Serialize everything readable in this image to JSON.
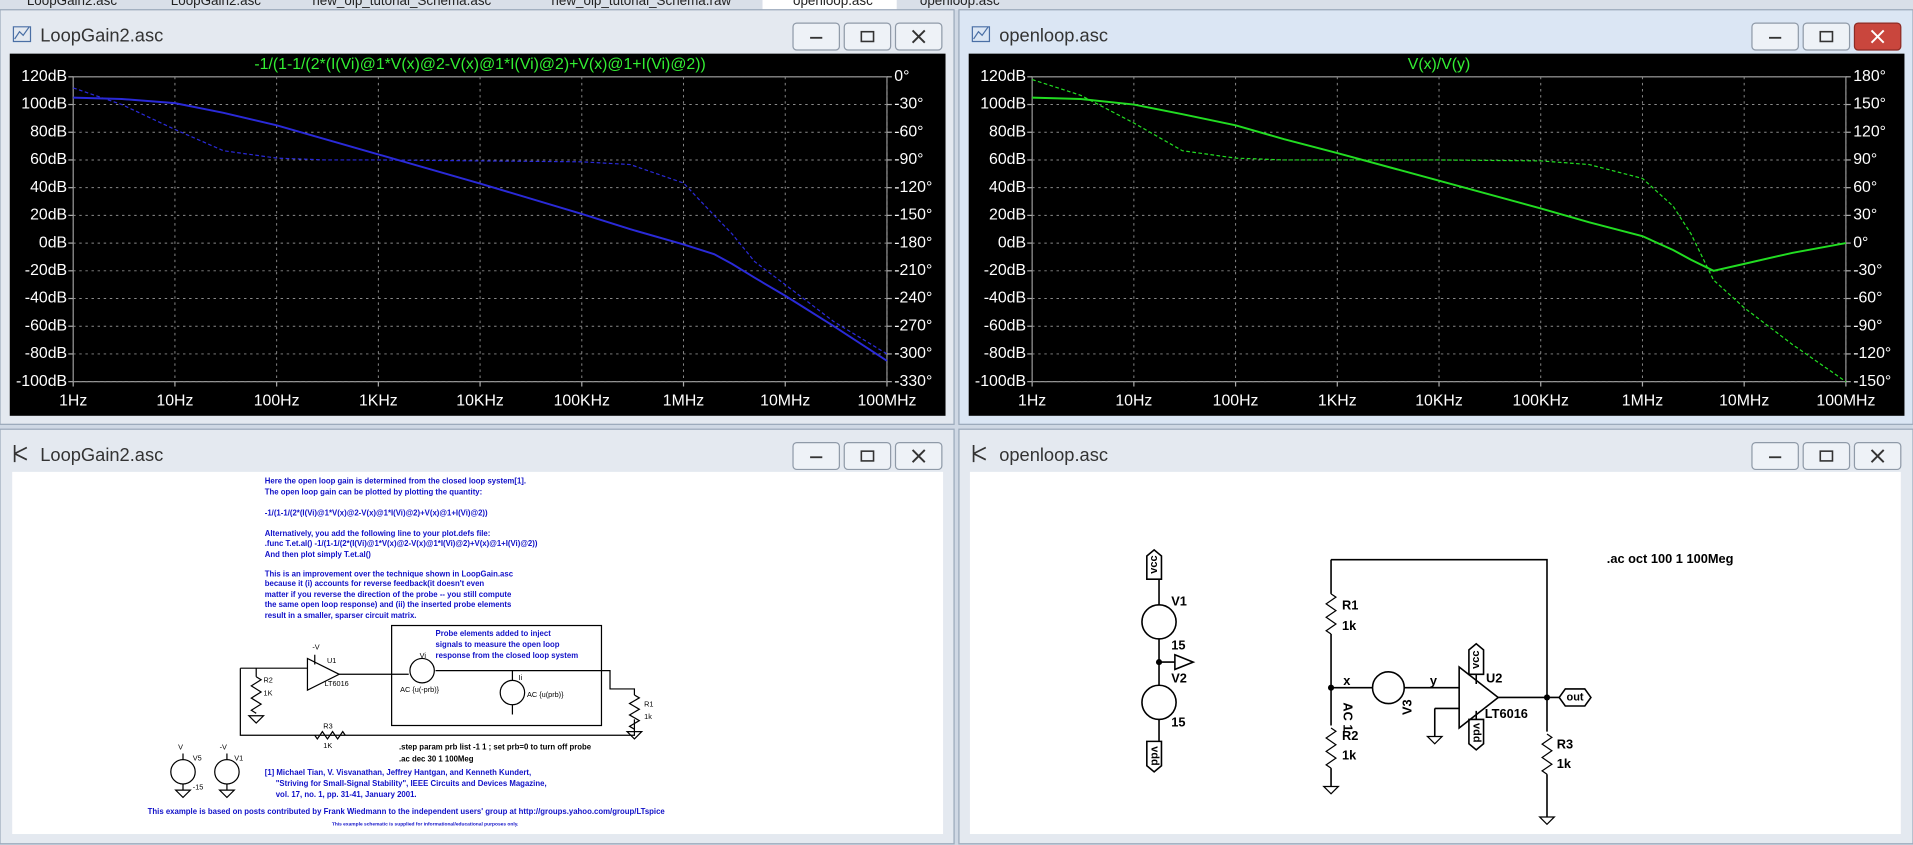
{
  "tabs": [
    "LoopGain2.asc",
    "LoopGain2.asc",
    "new_olp_tutorial_Schema.asc",
    "new_olp_tutorial_Schema.raw",
    "openloop.asc",
    "openloop.asc"
  ],
  "plot_windows": [
    {
      "title": "LoopGain2.asc",
      "chart": {
        "type": "line",
        "title": "-1/(1-1/(2*(I(Vi)@1*V(x)@2-V(x)@1*I(Vi)@2)+V(x)@1+I(Vi)@2))",
        "x": [
          1,
          3,
          10,
          30,
          100,
          300,
          1000,
          10000,
          100000,
          300000,
          1000000,
          2000000,
          3000000,
          5000000,
          10000000,
          30000000,
          100000000
        ],
        "x_scale": "log",
        "xlim": [
          1,
          100000000
        ],
        "xticks": [
          {
            "value": 1,
            "label": "1Hz"
          },
          {
            "value": 10,
            "label": "10Hz"
          },
          {
            "value": 100,
            "label": "100Hz"
          },
          {
            "value": 1000,
            "label": "1KHz"
          },
          {
            "value": 10000,
            "label": "10KHz"
          },
          {
            "value": 100000,
            "label": "100KHz"
          },
          {
            "value": 1000000,
            "label": "1MHz"
          },
          {
            "value": 10000000,
            "label": "10MHz"
          },
          {
            "value": 100000000,
            "label": "100MHz"
          }
        ],
        "ylim": [
          -100,
          120
        ],
        "yticks": [
          {
            "value": 120,
            "label": "120dB"
          },
          {
            "value": 100,
            "label": "100dB"
          },
          {
            "value": 80,
            "label": "80dB"
          },
          {
            "value": 60,
            "label": "60dB"
          },
          {
            "value": 40,
            "label": "40dB"
          },
          {
            "value": 20,
            "label": "20dB"
          },
          {
            "value": 0,
            "label": "0dB"
          },
          {
            "value": -20,
            "label": "-20dB"
          },
          {
            "value": -40,
            "label": "-40dB"
          },
          {
            "value": -60,
            "label": "-60dB"
          },
          {
            "value": -80,
            "label": "-80dB"
          },
          {
            "value": -100,
            "label": "-100dB"
          }
        ],
        "y2lim": [
          -330,
          0
        ],
        "y2ticks": [
          {
            "value": 0,
            "label": "0°"
          },
          {
            "value": -30,
            "label": "-30°"
          },
          {
            "value": -60,
            "label": "-60°"
          },
          {
            "value": -90,
            "label": "-90°"
          },
          {
            "value": -120,
            "label": "-120°"
          },
          {
            "value": -150,
            "label": "-150°"
          },
          {
            "value": -180,
            "label": "-180°"
          },
          {
            "value": -210,
            "label": "-210°"
          },
          {
            "value": -240,
            "label": "-240°"
          },
          {
            "value": -270,
            "label": "-270°"
          },
          {
            "value": -300,
            "label": "-300°"
          },
          {
            "value": -330,
            "label": "-330°"
          }
        ],
        "grid": true,
        "series": [
          {
            "color": "#2a2ad8",
            "style": "solid",
            "values": [
              105,
              104,
              101,
              94,
              85,
              75,
              64,
              43,
              21,
              10,
              -1,
              -8,
              -15,
              -25,
              -38,
              -60,
              -85
            ]
          },
          {
            "color": "#2a2ad8",
            "style": "dashed",
            "axis": "y2",
            "values": [
              -12,
              -30,
              -57,
              -80,
              -88,
              -90,
              -90,
              -91,
              -92,
              -95,
              -115,
              -150,
              -170,
              -200,
              -225,
              -265,
              -300
            ]
          }
        ]
      }
    },
    {
      "title": "openloop.asc",
      "chart": {
        "type": "line",
        "title": "V(x)/V(y)",
        "x": [
          1,
          3,
          10,
          30,
          100,
          300,
          1000,
          10000,
          100000,
          300000,
          1000000,
          2000000,
          3000000,
          5000000,
          10000000,
          30000000,
          100000000
        ],
        "x_scale": "log",
        "xlim": [
          1,
          100000000
        ],
        "xticks": [
          {
            "value": 1,
            "label": "1Hz"
          },
          {
            "value": 10,
            "label": "10Hz"
          },
          {
            "value": 100,
            "label": "100Hz"
          },
          {
            "value": 1000,
            "label": "1KHz"
          },
          {
            "value": 10000,
            "label": "10KHz"
          },
          {
            "value": 100000,
            "label": "100KHz"
          },
          {
            "value": 1000000,
            "label": "1MHz"
          },
          {
            "value": 10000000,
            "label": "10MHz"
          },
          {
            "value": 100000000,
            "label": "100MHz"
          }
        ],
        "ylim": [
          -100,
          120
        ],
        "yticks": [
          {
            "value": 120,
            "label": "120dB"
          },
          {
            "value": 100,
            "label": "100dB"
          },
          {
            "value": 80,
            "label": "80dB"
          },
          {
            "value": 60,
            "label": "60dB"
          },
          {
            "value": 40,
            "label": "40dB"
          },
          {
            "value": 20,
            "label": "20dB"
          },
          {
            "value": 0,
            "label": "0dB"
          },
          {
            "value": -20,
            "label": "-20dB"
          },
          {
            "value": -40,
            "label": "-40dB"
          },
          {
            "value": -60,
            "label": "-60dB"
          },
          {
            "value": -80,
            "label": "-80dB"
          },
          {
            "value": -100,
            "label": "-100dB"
          }
        ],
        "y2lim": [
          -150,
          180
        ],
        "y2ticks": [
          {
            "value": 180,
            "label": "180°"
          },
          {
            "value": 150,
            "label": "150°"
          },
          {
            "value": 120,
            "label": "120°"
          },
          {
            "value": 90,
            "label": "90°"
          },
          {
            "value": 60,
            "label": "60°"
          },
          {
            "value": 30,
            "label": "30°"
          },
          {
            "value": 0,
            "label": "0°"
          },
          {
            "value": -30,
            "label": "-30°"
          },
          {
            "value": -60,
            "label": "-60°"
          },
          {
            "value": -90,
            "label": "-90°"
          },
          {
            "value": -120,
            "label": "-120°"
          },
          {
            "value": -150,
            "label": "-150°"
          }
        ],
        "grid": true,
        "series": [
          {
            "color": "#22dd22",
            "style": "solid",
            "values": [
              105,
              104,
              100,
              93,
              85,
              75,
              65,
              45,
              25,
              15,
              5,
              -5,
              -12,
              -20,
              -15,
              -7,
              0
            ]
          },
          {
            "color": "#22dd22",
            "style": "dashed",
            "axis": "y2",
            "values": [
              177,
              160,
              130,
              100,
              92,
              90,
              90,
              90,
              89,
              85,
              70,
              40,
              10,
              -40,
              -70,
              -110,
              -150
            ]
          }
        ]
      }
    }
  ],
  "schematic_windows": [
    {
      "title": "LoopGain2.asc",
      "notes": [
        "Here the open loop gain is determined from the closed loop system[1].",
        "The open loop gain can be plotted by plotting the quantity:",
        "-1/(1-1/(2*(I(Vi)@1*V(x)@2-V(x)@1*I(Vi)@2)+V(x)@1+I(Vi)@2))",
        "Alternatively, you add the following line to your plot.defs file:",
        ".func T.et.al() -1/(1-1/(2*(I(Vi)@1*V(x)@2-V(x)@1*I(Vi)@2)+V(x)@1+I(Vi)@2))",
        "And then plot simply T.et.al()",
        "This is an improvement over the technique shown in LoopGain.asc",
        "because it (i) accounts for reverse feedback(it doesn't even",
        "matter if you reverse the direction of the probe -- you still compute",
        "the same open loop response) and (ii) the inserted probe elements",
        "result in a smaller, sparser circuit matrix.",
        "Probe elements added to  inject",
        "signals to measure the open loop",
        "response from the closed loop system",
        ".step param prb list -1 1 ; set prb=0 to turn off probe",
        ".ac dec 30 1 100Meg",
        "[1] Michael Tian, V. Visvanathan, Jeffrey Hantgan, and Kenneth Kundert,",
        "\"Striving for Small-Signal Stability\", IEEE Circuits and Devices Magazine,",
        "vol. 17, no. 1, pp. 31-41, January 2001.",
        "This example is based on posts contributed by Frank Wiedmann to the independent users' group at http://groups.yahoo.com/group/LTspice",
        "This example schematic is supplied for informational/educational purposes only."
      ],
      "labels": [
        "-V",
        "U1",
        "LT6016",
        "R2",
        "1K",
        "Vi",
        "AC {u(-prb)}",
        "Ii",
        "AC {u(prb)}",
        "R1",
        "1k",
        "R3",
        "1K",
        "V",
        "-V",
        "V5",
        "-15",
        "V1"
      ]
    },
    {
      "title": "openloop.asc",
      "labels": [
        "vcc",
        "V1",
        "15",
        "V2",
        "15",
        "vdd",
        "R1",
        "1k",
        "x",
        "y",
        "V3",
        "AC 1",
        "U2",
        "LT6016",
        "vcc",
        "vdd",
        "out",
        "R2",
        "1k",
        "R3",
        "1k",
        ".ac oct 100 1 100Meg"
      ]
    }
  ]
}
